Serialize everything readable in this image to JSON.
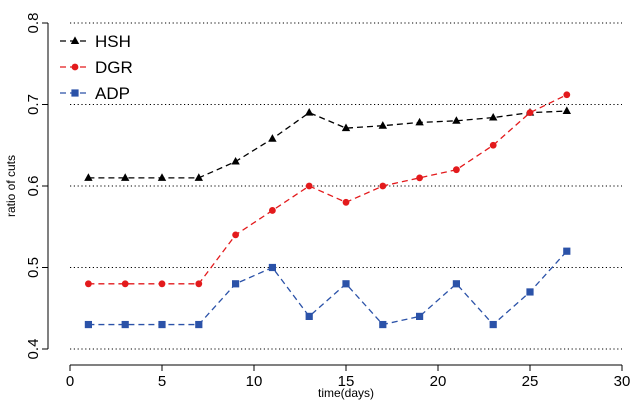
{
  "chart_data": {
    "type": "line",
    "xlabel": "time(days)",
    "ylabel": "ratio of cuts",
    "xlim": [
      0,
      30
    ],
    "ylim": [
      0.4,
      0.8
    ],
    "xticks": [
      0,
      5,
      10,
      15,
      20,
      25,
      30
    ],
    "yticks": [
      0.4,
      0.5,
      0.6,
      0.7,
      0.8
    ],
    "grid": "horizontal dotted",
    "legend_position": "top-left",
    "x": [
      1,
      3,
      5,
      7,
      9,
      11,
      13,
      15,
      17,
      19,
      21,
      23,
      25,
      27
    ],
    "series": [
      {
        "name": "HSH",
        "color": "#000000",
        "marker": "triangle",
        "values": [
          0.61,
          0.61,
          0.61,
          0.61,
          0.63,
          0.658,
          0.69,
          0.671,
          0.674,
          0.678,
          0.68,
          0.684,
          0.69,
          0.692
        ]
      },
      {
        "name": "DGR",
        "color": "#e31a1c",
        "marker": "circle",
        "values": [
          0.48,
          0.48,
          0.48,
          0.48,
          0.54,
          0.57,
          0.6,
          0.58,
          0.6,
          0.61,
          0.62,
          0.65,
          0.69,
          0.712
        ]
      },
      {
        "name": "ADP",
        "color": "#2b52a8",
        "marker": "square",
        "values": [
          0.43,
          0.43,
          0.43,
          0.43,
          0.48,
          0.5,
          0.44,
          0.48,
          0.43,
          0.44,
          0.48,
          0.43,
          0.47,
          0.52
        ]
      }
    ]
  }
}
